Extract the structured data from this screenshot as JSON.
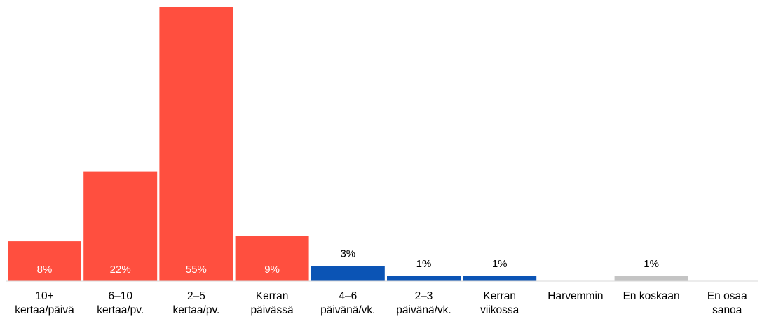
{
  "chart_data": {
    "type": "bar",
    "categories": [
      [
        "10+",
        "kertaa/päivä"
      ],
      [
        "6–10",
        "kertaa/pv."
      ],
      [
        "2–5",
        "kertaa/pv."
      ],
      [
        "Kerran",
        "päivässä"
      ],
      [
        "4–6",
        "päivänä/vk."
      ],
      [
        "2–3",
        "päivänä/vk."
      ],
      [
        "Kerran",
        "viikossa"
      ],
      [
        "Harvemmin"
      ],
      [
        "En koskaan"
      ],
      [
        "En osaa",
        "sanoa"
      ]
    ],
    "values": [
      8,
      22,
      55,
      9,
      3,
      1,
      1,
      0,
      1,
      0
    ],
    "value_labels": [
      "8%",
      "22%",
      "55%",
      "9%",
      "3%",
      "1%",
      "1%",
      "",
      "1%",
      ""
    ],
    "bar_colors": [
      "#ff4f3f",
      "#ff4f3f",
      "#ff4f3f",
      "#ff4f3f",
      "#0b54b5",
      "#0b54b5",
      "#0b54b5",
      "#0b54b5",
      "#c4c4c4",
      "#c4c4c4"
    ],
    "label_inside": [
      true,
      true,
      true,
      true,
      false,
      false,
      false,
      false,
      false,
      false
    ],
    "inside_label_color": "#ffffff",
    "outside_label_color": "#000000",
    "title": "",
    "xlabel": "",
    "ylabel": "",
    "ylim": [
      0,
      55
    ],
    "grid": false,
    "legend": "none"
  }
}
